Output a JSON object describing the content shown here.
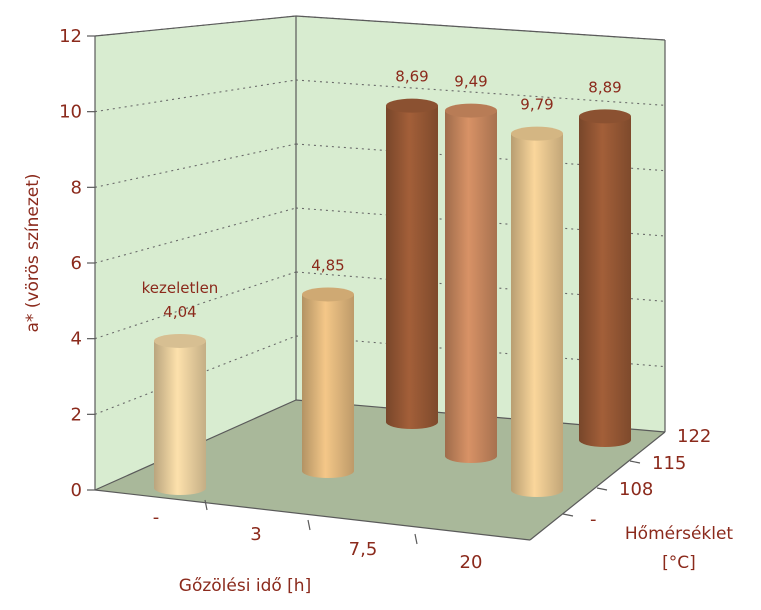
{
  "chart_data": {
    "type": "bar",
    "style": "3d-cylinder",
    "ylabel": "a* (vörös színezet)",
    "xlabel": "Gőzölési idő [h]",
    "zlabel_line1": "Hőmérséklet",
    "zlabel_line2": "[°C]",
    "ylim": [
      0,
      12
    ],
    "yticks": [
      "0",
      "2",
      "4",
      "6",
      "8",
      "10",
      "12"
    ],
    "x_categories": [
      "-",
      "3",
      "7,5",
      "20"
    ],
    "z_categories": [
      "-",
      "108",
      "115",
      "122"
    ],
    "grid": true,
    "wall_color": "#d8ecd0",
    "floor_color": "#a9b89a",
    "bars": [
      {
        "x": "-",
        "z": "-",
        "value": 4.04,
        "label": "4,04",
        "note": "kezeletlen",
        "color": "#efd4a2"
      },
      {
        "x": "3",
        "z": "-",
        "value": 4.85,
        "label": "4,85",
        "note": "",
        "color": "#e6bc80"
      },
      {
        "x": "3",
        "z": "122",
        "value": 8.69,
        "label": "8,69",
        "note": "",
        "color": "#9a5a36"
      },
      {
        "x": "7,5",
        "z": "115",
        "value": 9.49,
        "label": "9,49",
        "note": "",
        "color": "#cc8a60"
      },
      {
        "x": "7,5",
        "z": "108",
        "value": 9.79,
        "label": "9,79",
        "note": "",
        "color": "#ecca92"
      },
      {
        "x": "20",
        "z": "122",
        "value": 8.89,
        "label": "8,89",
        "note": "",
        "color": "#9a5a36"
      }
    ]
  }
}
